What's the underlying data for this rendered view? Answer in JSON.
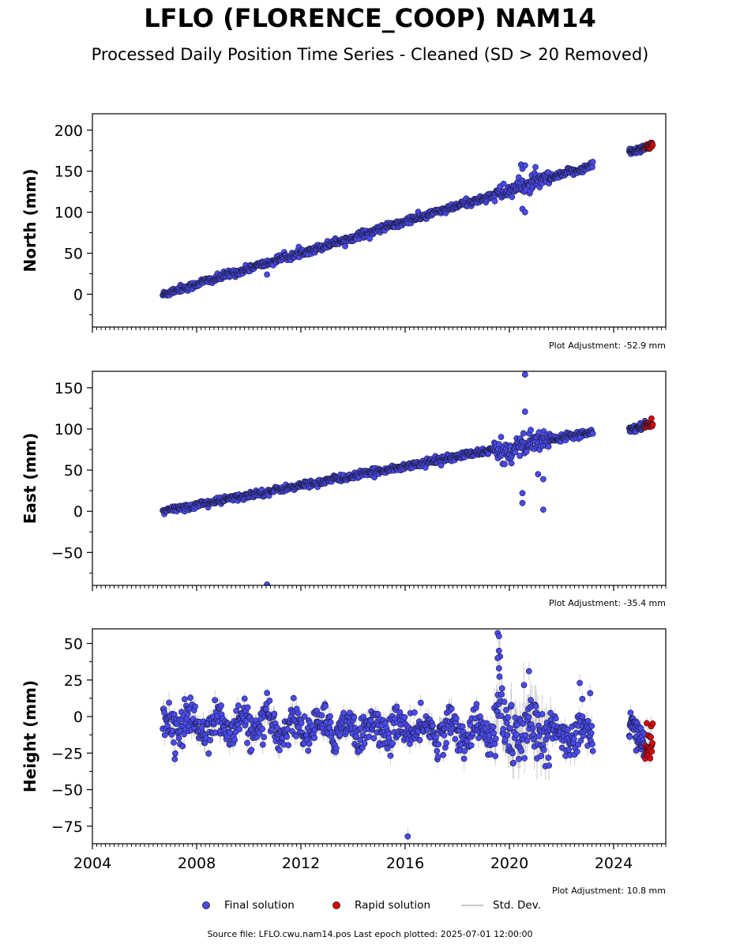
{
  "figure": {
    "title": "LFLO (FLORENCE_COOP) NAM14",
    "subtitle": "Processed Daily Position Time Series - Cleaned (SD > 20 Removed)",
    "footer": "Source file: LFLO.cwu.nam14.pos  Last epoch plotted: 2025-07-01 12:00:00"
  },
  "legend": {
    "final": "Final solution",
    "rapid": "Rapid solution",
    "std": "Std. Dev."
  },
  "colors": {
    "final": "#4a4af0",
    "rapid": "#e00000",
    "std": "#bbbbbb",
    "marker_edge": "#1a1a33"
  },
  "chart_data": [
    {
      "type": "scatter",
      "ylabel": "North (mm)",
      "adjustment": "Plot Adjustment: -52.9 mm",
      "xlim": [
        2004,
        2026
      ],
      "ylim": [
        -40,
        220
      ],
      "xticks": [
        2004,
        2008,
        2012,
        2016,
        2020,
        2024
      ],
      "yticks": [
        0,
        50,
        100,
        150,
        200
      ],
      "trend": {
        "start": [
          2006.7,
          0
        ],
        "end": [
          2023.2,
          157
        ]
      },
      "gap": [
        2023.3,
        2024.6
      ],
      "late_segment": {
        "start": [
          2024.6,
          174
        ],
        "end": [
          2025.5,
          181
        ]
      },
      "rapid_range": [
        2025.2,
        2025.5
      ],
      "noise_sd": 2.2,
      "noise_sd_2020": 4.5,
      "outliers": [
        {
          "x": 2010.7,
          "y": 24
        },
        {
          "x": 2020.45,
          "y": 158
        },
        {
          "x": 2020.5,
          "y": 153
        },
        {
          "x": 2020.6,
          "y": 157
        },
        {
          "x": 2020.5,
          "y": 104
        },
        {
          "x": 2020.6,
          "y": 100
        },
        {
          "x": 2021.0,
          "y": 155
        }
      ]
    },
    {
      "type": "scatter",
      "ylabel": "East (mm)",
      "adjustment": "Plot Adjustment: -35.4 mm",
      "xlim": [
        2004,
        2026
      ],
      "ylim": [
        -90,
        170
      ],
      "xticks": [
        2004,
        2008,
        2012,
        2016,
        2020,
        2024
      ],
      "yticks": [
        -50,
        0,
        50,
        100,
        150
      ],
      "trend": {
        "start": [
          2006.7,
          0
        ],
        "end": [
          2023.2,
          97
        ]
      },
      "gap": [
        2023.3,
        2024.6
      ],
      "late_segment": {
        "start": [
          2024.6,
          100
        ],
        "end": [
          2025.5,
          106
        ]
      },
      "rapid_range": [
        2025.2,
        2025.5
      ],
      "noise_sd": 2.0,
      "noise_sd_2020": 6,
      "outliers": [
        {
          "x": 2010.7,
          "y": -89
        },
        {
          "x": 2020.6,
          "y": 166
        },
        {
          "x": 2020.6,
          "y": 121
        },
        {
          "x": 2020.5,
          "y": 22
        },
        {
          "x": 2020.5,
          "y": 10
        },
        {
          "x": 2021.1,
          "y": 45
        },
        {
          "x": 2021.3,
          "y": 39
        },
        {
          "x": 2021.3,
          "y": 2
        }
      ]
    },
    {
      "type": "scatter",
      "ylabel": "Height (mm)",
      "adjustment": "Plot Adjustment: 10.8 mm",
      "xlim": [
        2004,
        2026
      ],
      "ylim": [
        -87,
        60
      ],
      "xticks": [
        2004,
        2008,
        2012,
        2016,
        2020,
        2024
      ],
      "yticks": [
        -75,
        -50,
        -25,
        0,
        25,
        50
      ],
      "trend": {
        "start": [
          2006.7,
          -5
        ],
        "end": [
          2023.2,
          -12
        ]
      },
      "gap": [
        2023.3,
        2024.6
      ],
      "late_segment": {
        "start": [
          2024.6,
          -12
        ],
        "end": [
          2025.5,
          -16
        ]
      },
      "rapid_range": [
        2025.2,
        2025.5
      ],
      "noise_sd": 6,
      "noise_sd_2020": 12,
      "outliers": [
        {
          "x": 2016.1,
          "y": -82
        },
        {
          "x": 2019.55,
          "y": 57
        },
        {
          "x": 2019.6,
          "y": 55
        },
        {
          "x": 2019.6,
          "y": 45
        },
        {
          "x": 2019.55,
          "y": 40
        },
        {
          "x": 2019.6,
          "y": 33
        },
        {
          "x": 2020.75,
          "y": 31
        },
        {
          "x": 2022.7,
          "y": 23
        },
        {
          "x": 2023.1,
          "y": 16
        },
        {
          "x": 2022.8,
          "y": 12
        }
      ]
    }
  ]
}
